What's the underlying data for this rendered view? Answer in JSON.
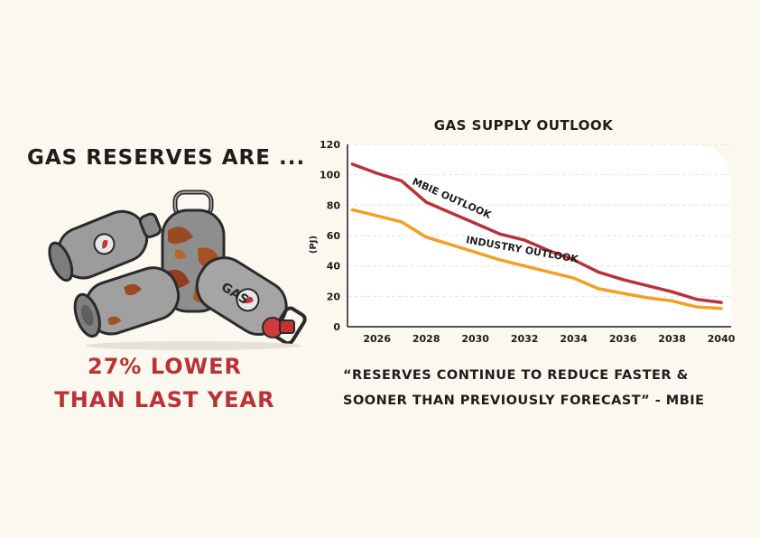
{
  "headline": "GAS RESERVES ARE ...",
  "stat": {
    "line1": "27% LOWER",
    "line2": "THAN LAST YEAR"
  },
  "quote": {
    "line1": "“RESERVES CONTINUE TO REDUCE FASTER &",
    "line2": "SOONER THAN PREVIOUSLY FORECAST” - MBIE"
  },
  "colors": {
    "background": "#fbf8ef",
    "accent_red": "#b83236",
    "mbie_line": "#b8323a",
    "industry_line": "#f2a024"
  },
  "illustration": {
    "icon": "gas-cylinders-icon",
    "label": "GAS"
  },
  "chart_data": {
    "type": "line",
    "title": "GAS SUPPLY OUTLOOK",
    "ylabel": "(PJ)",
    "xlabel": "",
    "ylim": [
      0,
      120
    ],
    "yticks": [
      0,
      20,
      40,
      60,
      80,
      100,
      120
    ],
    "xlim": [
      2024.8,
      2040.4
    ],
    "xticks": [
      2026,
      2028,
      2030,
      2032,
      2034,
      2036,
      2038,
      2040
    ],
    "grid": true,
    "series": [
      {
        "name": "MBIE OUTLOOK",
        "color": "#b8323a",
        "x": [
          2025,
          2026,
          2027,
          2028,
          2029,
          2030,
          2031,
          2032,
          2033,
          2034,
          2035,
          2036,
          2037,
          2038,
          2039,
          2040
        ],
        "values": [
          107,
          101,
          96,
          82,
          75,
          68,
          61,
          57,
          50,
          44,
          36,
          31,
          27,
          23,
          18,
          16
        ]
      },
      {
        "name": "INDUSTRY OUTLOOK",
        "color": "#f2a024",
        "x": [
          2025,
          2026,
          2027,
          2028,
          2029,
          2030,
          2031,
          2032,
          2033,
          2034,
          2035,
          2036,
          2037,
          2038,
          2039,
          2040
        ],
        "values": [
          77,
          73,
          69,
          59,
          54,
          49,
          44,
          40,
          36,
          32,
          25,
          22,
          19,
          17,
          13,
          12
        ]
      }
    ]
  }
}
